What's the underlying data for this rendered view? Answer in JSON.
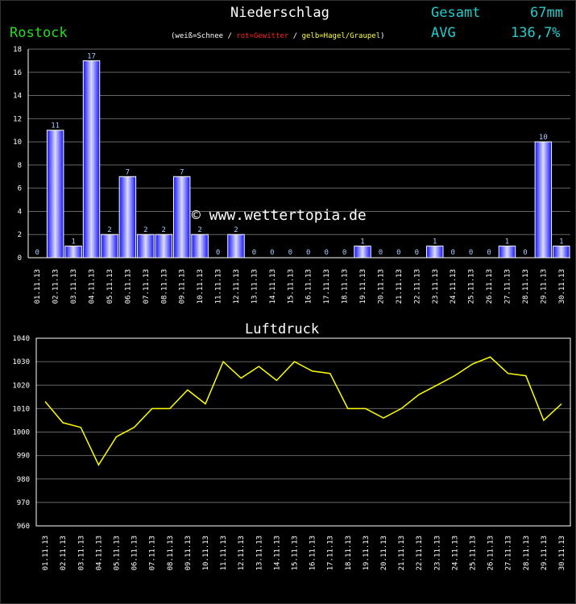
{
  "header": {
    "title": "Niederschlag",
    "city": "Rostock",
    "legend": {
      "open": "(",
      "snow": "weiß=Schnee",
      "sep1": " / ",
      "thunder": "rot=Gewitter",
      "sep2": " / ",
      "hail": "gelb=Hagel/Graupel",
      "close": ")"
    },
    "total_label": "Gesamt",
    "total_value": "67mm",
    "avg_label": "AVG",
    "avg_value": "136,7%"
  },
  "watermark": "© www.wettertopia.de",
  "colors": {
    "bars": "#2222ff",
    "line": "#ffff00",
    "grid": "#666666",
    "axis_text": "#ffffff",
    "bar_label": "#aaccff"
  },
  "chart_data": [
    {
      "type": "bar",
      "title": "Niederschlag",
      "categories": [
        "01.11.13",
        "02.11.13",
        "03.11.13",
        "04.11.13",
        "05.11.13",
        "06.11.13",
        "07.11.13",
        "08.11.13",
        "09.11.13",
        "10.11.13",
        "11.11.13",
        "12.11.13",
        "13.11.13",
        "14.11.13",
        "15.11.13",
        "16.11.13",
        "17.11.13",
        "18.11.13",
        "19.11.13",
        "20.11.13",
        "21.11.13",
        "22.11.13",
        "23.11.13",
        "24.11.13",
        "25.11.13",
        "26.11.13",
        "27.11.13",
        "28.11.13",
        "29.11.13",
        "30.11.13"
      ],
      "values": [
        0,
        11,
        1,
        17,
        2,
        7,
        2,
        2,
        7,
        2,
        0,
        2,
        0,
        0,
        0,
        0,
        0,
        0,
        1,
        0,
        0,
        0,
        1,
        0,
        0,
        0,
        1,
        0,
        10,
        1
      ],
      "ylim": [
        0,
        18
      ],
      "yticks": [
        0,
        2,
        4,
        6,
        8,
        10,
        12,
        14,
        16,
        18
      ],
      "grid": true
    },
    {
      "type": "line",
      "title": "Luftdruck",
      "categories": [
        "01.11.13",
        "02.11.13",
        "03.11.13",
        "04.11.13",
        "05.11.13",
        "06.11.13",
        "07.11.13",
        "08.11.13",
        "09.11.13",
        "10.11.13",
        "11.11.13",
        "12.11.13",
        "13.11.13",
        "14.11.13",
        "15.11.13",
        "16.11.13",
        "17.11.13",
        "18.11.13",
        "19.11.13",
        "20.11.13",
        "21.11.13",
        "22.11.13",
        "23.11.13",
        "24.11.13",
        "25.11.13",
        "26.11.13",
        "27.11.13",
        "28.11.13",
        "29.11.13",
        "30.11.13"
      ],
      "values": [
        1013,
        1004,
        1002,
        986,
        998,
        1002,
        1010,
        1010,
        1018,
        1012,
        1030,
        1023,
        1028,
        1022,
        1030,
        1026,
        1025,
        1010,
        1010,
        1006,
        1010,
        1016,
        1020,
        1024,
        1029,
        1032,
        1025,
        1024,
        1005,
        1012
      ],
      "ylim": [
        960,
        1040
      ],
      "yticks": [
        960,
        970,
        980,
        990,
        1000,
        1010,
        1020,
        1030,
        1040
      ],
      "grid": true
    }
  ]
}
